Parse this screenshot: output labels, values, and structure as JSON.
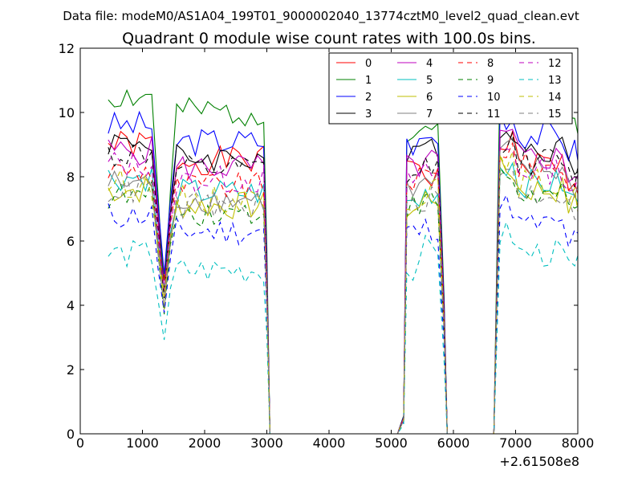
{
  "figure": {
    "suptitle": "Data file: modeM0/AS1A04_199T01_9000002040_13774cztM0_level2_quad_clean.evt"
  },
  "chart_data": {
    "type": "line",
    "title": "Quadrant 0 module wise count rates with 100.0s bins.",
    "xlabel": "",
    "ylabel": "",
    "xlim": [
      0,
      8000
    ],
    "ylim": [
      0,
      12
    ],
    "x_offset_label": "+2.61508e8",
    "xticks": [
      0,
      1000,
      2000,
      3000,
      4000,
      5000,
      6000,
      7000,
      8000
    ],
    "yticks": [
      0,
      2,
      4,
      6,
      8,
      10,
      12
    ],
    "grid": false,
    "legend_position": "top-right",
    "legend_columns": 4,
    "segments": [
      {
        "x": [
          450,
          550,
          650,
          750,
          850,
          950,
          1050,
          1150,
          1250,
          1350,
          1450,
          1550,
          1650,
          1750,
          1850,
          1950,
          2050,
          2150,
          2250,
          2350,
          2450,
          2550,
          2650,
          2750,
          2850,
          2950,
          3000,
          3050
        ]
      },
      {
        "x": [
          3050,
          5100,
          5200
        ]
      },
      {
        "x": [
          5200,
          5250,
          5350,
          5450,
          5550,
          5650,
          5750,
          5850,
          5900
        ]
      },
      {
        "x": [
          5900,
          6600,
          6650
        ]
      },
      {
        "x": [
          6650,
          6750,
          6850,
          6950,
          7050,
          7150,
          7250,
          7350,
          7450,
          7550,
          7650,
          7750,
          7850,
          7950,
          8000
        ]
      }
    ],
    "series": [
      {
        "name": "0",
        "color": "#ff0000",
        "dash": "solid",
        "levels": [
          9.0,
          4.6,
          8.5,
          8.0,
          8.4
        ],
        "seed": 1
      },
      {
        "name": "1",
        "color": "#008000",
        "dash": "solid",
        "levels": [
          10.5,
          4.4,
          9.4,
          9.6,
          10.2
        ],
        "seed": 2
      },
      {
        "name": "2",
        "color": "#0000ff",
        "dash": "solid",
        "levels": [
          9.6,
          4.7,
          9.0,
          9.2,
          9.3
        ],
        "seed": 3
      },
      {
        "name": "3",
        "color": "#000000",
        "dash": "solid",
        "levels": [
          9.1,
          4.3,
          8.6,
          9.0,
          8.9
        ],
        "seed": 4
      },
      {
        "name": "4",
        "color": "#bf00bf",
        "dash": "solid",
        "levels": [
          8.8,
          4.5,
          8.3,
          8.5,
          8.6
        ],
        "seed": 5
      },
      {
        "name": "5",
        "color": "#00bfbf",
        "dash": "solid",
        "levels": [
          8.0,
          4.2,
          7.2,
          7.5,
          7.8
        ],
        "seed": 6
      },
      {
        "name": "6",
        "color": "#bfbf00",
        "dash": "solid",
        "levels": [
          7.6,
          4.0,
          7.0,
          7.4,
          7.6
        ],
        "seed": 7
      },
      {
        "name": "7",
        "color": "#808080",
        "dash": "solid",
        "levels": [
          7.8,
          4.1,
          7.6,
          7.8,
          8.2
        ],
        "seed": 8
      },
      {
        "name": "8",
        "color": "#ff0000",
        "dash": "dashed",
        "levels": [
          8.2,
          4.3,
          7.9,
          8.0,
          8.3
        ],
        "seed": 9
      },
      {
        "name": "9",
        "color": "#008000",
        "dash": "dashed",
        "levels": [
          7.4,
          4.0,
          7.1,
          7.2,
          7.4
        ],
        "seed": 10
      },
      {
        "name": "10",
        "color": "#0000ff",
        "dash": "dashed",
        "levels": [
          6.8,
          3.7,
          6.3,
          6.4,
          6.5
        ],
        "seed": 11
      },
      {
        "name": "11",
        "color": "#000000",
        "dash": "dashed",
        "levels": [
          8.7,
          4.4,
          8.0,
          8.3,
          8.5
        ],
        "seed": 12
      },
      {
        "name": "12",
        "color": "#bf00bf",
        "dash": "dashed",
        "levels": [
          8.4,
          4.3,
          7.9,
          8.1,
          8.2
        ],
        "seed": 13
      },
      {
        "name": "13",
        "color": "#00bfbf",
        "dash": "dashed",
        "levels": [
          5.6,
          3.0,
          5.0,
          5.8,
          5.6
        ],
        "seed": 14
      },
      {
        "name": "14",
        "color": "#bfbf00",
        "dash": "dashed",
        "levels": [
          7.8,
          4.0,
          7.3,
          7.6,
          7.8
        ],
        "seed": 15
      },
      {
        "name": "15",
        "color": "#808080",
        "dash": "dashed",
        "levels": [
          7.6,
          3.9,
          7.0,
          7.3,
          7.5
        ],
        "seed": 16
      }
    ]
  }
}
